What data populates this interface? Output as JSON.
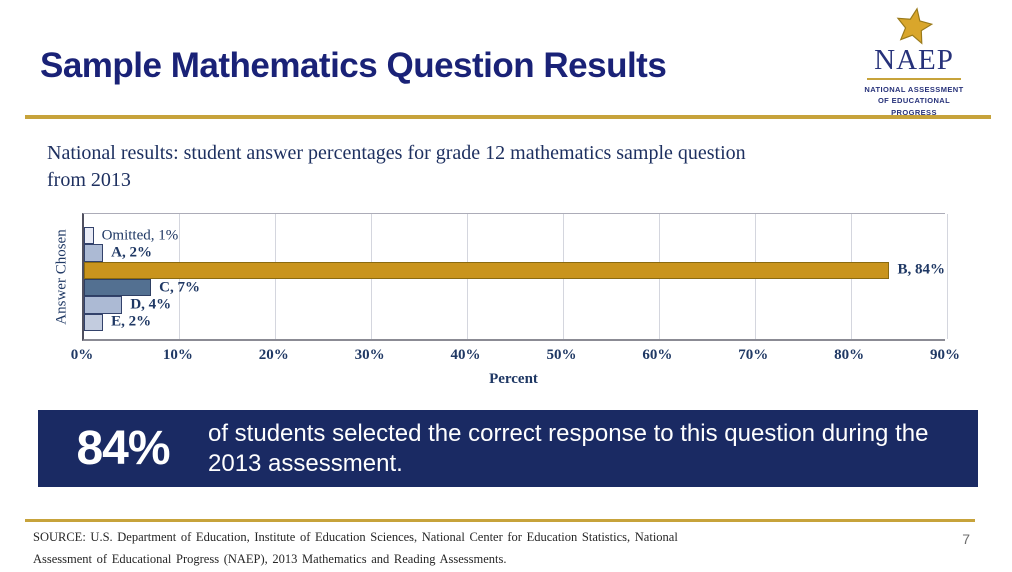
{
  "header": {
    "title": "Sample Mathematics Question Results",
    "logo": {
      "name": "NAEP",
      "subtitle_lines": [
        "NATIONAL ASSESSMENT",
        "OF EDUCATIONAL",
        "PROGRESS"
      ]
    }
  },
  "subtitle": "National results: student answer percentages for grade 12 mathematics sample question from 2013",
  "chart_data": {
    "type": "bar",
    "orientation": "horizontal",
    "categories": [
      "Omitted",
      "A",
      "B",
      "C",
      "D",
      "E"
    ],
    "values": [
      1,
      2,
      84,
      7,
      4,
      2
    ],
    "labels": [
      "Omitted, 1%",
      "A, 2%",
      "B, 84%",
      "C, 7%",
      "D, 4%",
      "E, 2%"
    ],
    "bar_colors": [
      "#E9EBF5",
      "#ACBAD4",
      "#C9941D",
      "#537091",
      "#ACBAD4",
      "#C3CCDF"
    ],
    "bar_border_colors": [
      "#33426B",
      "#33426B",
      "#8A6A10",
      "#2E3F63",
      "#33426B",
      "#33426B"
    ],
    "label_bold": [
      false,
      true,
      true,
      true,
      true,
      true
    ],
    "xlabel": "Percent",
    "ylabel": "Answer Chosen",
    "x_ticks": [
      "0%",
      "10%",
      "20%",
      "30%",
      "40%",
      "50%",
      "60%",
      "70%",
      "80%",
      "90%"
    ],
    "x_tick_values": [
      0,
      10,
      20,
      30,
      40,
      50,
      60,
      70,
      80,
      90
    ],
    "xlim": [
      0,
      90
    ],
    "grid": true,
    "legend": false
  },
  "callout": {
    "stat": "84%",
    "text": "of students selected the correct response to this question during the 2013 assessment."
  },
  "footer": {
    "source_lines": [
      "SOURCE: U.S. Department of Education, Institute of Education Sciences, National Center for Education Statistics, National",
      "Assessment of Educational Progress (NAEP), 2013 Mathematics and Reading Assessments."
    ],
    "page_number": "7"
  },
  "colors": {
    "navy_title": "#1A2277",
    "navy_banner": "#1A2A63",
    "navy_chart_text": "#1F3864",
    "gold_rule": "#C7A33B",
    "gold_bar": "#C9941D"
  }
}
